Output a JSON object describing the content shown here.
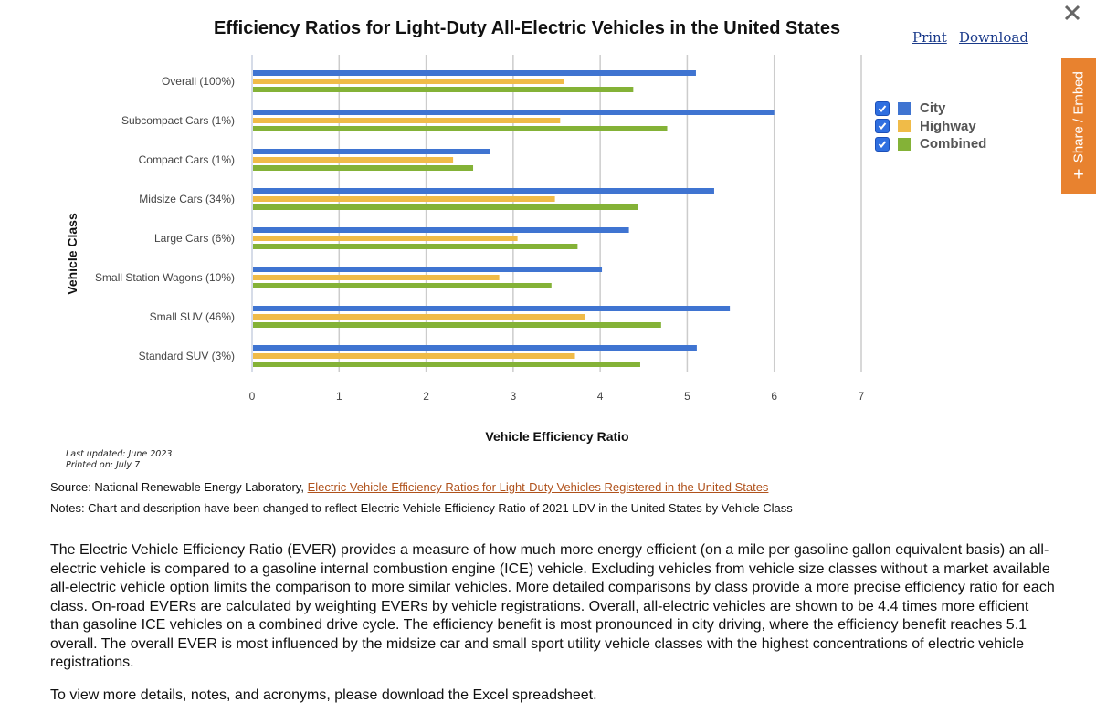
{
  "header": {
    "title": "Efficiency Ratios for Light-Duty All-Electric Vehicles in the United States",
    "print_label": "Print",
    "download_label": "Download",
    "close_icon": "close-x-icon",
    "share_label": "Share / Embed",
    "share_icon": "plus-icon"
  },
  "legend": {
    "items": [
      {
        "label": "City",
        "color": "#3f74d1",
        "checked": true
      },
      {
        "label": "Highway",
        "color": "#f0bb48",
        "checked": true
      },
      {
        "label": "Combined",
        "color": "#84b237",
        "checked": true
      }
    ]
  },
  "chart_data": {
    "type": "bar",
    "orientation": "horizontal",
    "title": "Efficiency Ratios for Light-Duty All-Electric Vehicles in the United States",
    "xlabel": "Vehicle Efficiency Ratio",
    "ylabel": "Vehicle Class",
    "xlim": [
      0,
      7
    ],
    "xticks": [
      "0",
      "1",
      "2",
      "3",
      "4",
      "5",
      "6",
      "7"
    ],
    "grid": true,
    "legend_position": "right",
    "categories": [
      "Overall (100%)",
      "Subcompact Cars (1%)",
      "Compact Cars (1%)",
      "Midsize Cars (34%)",
      "Large Cars (6%)",
      "Small Station Wagons (10%)",
      "Small SUV (46%)",
      "Standard SUV (3%)"
    ],
    "series": [
      {
        "name": "City",
        "color": "#3f74d1",
        "values": [
          5.1,
          6.0,
          2.73,
          5.31,
          4.33,
          4.02,
          5.49,
          5.11
        ]
      },
      {
        "name": "Highway",
        "color": "#f0bb48",
        "values": [
          3.58,
          3.54,
          2.31,
          3.48,
          3.05,
          2.84,
          3.83,
          3.71
        ]
      },
      {
        "name": "Combined",
        "color": "#84b237",
        "values": [
          4.38,
          4.77,
          2.54,
          4.43,
          3.74,
          3.44,
          4.7,
          4.46
        ]
      }
    ]
  },
  "footer": {
    "last_updated": "Last updated: June 2023",
    "printed_on": "Printed on: July 7",
    "source_prefix": "Source: National Renewable Energy Laboratory, ",
    "source_link": "Electric Vehicle Efficiency Ratios for Light-Duty Vehicles Registered in the United States",
    "notes": "Notes: Chart and description have been changed to reflect Electric Vehicle Efficiency Ratio of 2021 LDV in the United States by Vehicle Class",
    "description": "The Electric Vehicle Efficiency Ratio (EVER) provides a measure of how much more energy efficient (on a mile per gasoline gallon equivalent basis) an all-electric vehicle is compared to a gasoline internal combustion engine (ICE) vehicle. Excluding vehicles from vehicle size classes without a market available all-electric vehicle option limits the comparison to more similar vehicles. More detailed comparisons by class provide a more precise efficiency ratio for each class. On-road EVERs are calculated by weighting EVERs by vehicle registrations. Overall, all-electric vehicles are shown to be 4.4 times more efficient than gasoline ICE vehicles on a combined drive cycle. The efficiency benefit is most pronounced in city driving, where the efficiency benefit reaches 5.1 overall. The overall EVER is most influenced by the midsize car and small sport utility vehicle classes with the highest concentrations of electric vehicle registrations.",
    "more_info": "To view more details, notes, and acronyms, please download the Excel spreadsheet."
  }
}
